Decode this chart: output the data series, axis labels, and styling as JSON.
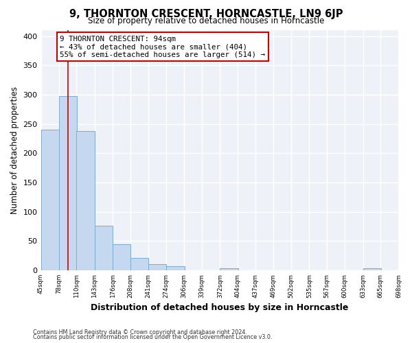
{
  "title": "9, THORNTON CRESCENT, HORNCASTLE, LN9 6JP",
  "subtitle": "Size of property relative to detached houses in Horncastle",
  "xlabel": "Distribution of detached houses by size in Horncastle",
  "ylabel": "Number of detached properties",
  "bar_left_edges": [
    45,
    78,
    110,
    143,
    176,
    208,
    241,
    274,
    306,
    339,
    372,
    404,
    437,
    469,
    502,
    535,
    567,
    600,
    633,
    665
  ],
  "bar_heights": [
    240,
    298,
    238,
    76,
    44,
    21,
    10,
    7,
    0,
    0,
    3,
    0,
    0,
    0,
    0,
    0,
    0,
    0,
    3,
    0
  ],
  "bin_width": 33,
  "tick_labels": [
    "45sqm",
    "78sqm",
    "110sqm",
    "143sqm",
    "176sqm",
    "208sqm",
    "241sqm",
    "274sqm",
    "306sqm",
    "339sqm",
    "372sqm",
    "404sqm",
    "437sqm",
    "469sqm",
    "502sqm",
    "535sqm",
    "567sqm",
    "600sqm",
    "633sqm",
    "665sqm",
    "698sqm"
  ],
  "bar_color": "#c5d8ef",
  "bar_edge_color": "#7aadd4",
  "vline_x": 94,
  "vline_color": "#cc0000",
  "annotation_title": "9 THORNTON CRESCENT: 94sqm",
  "annotation_line1": "← 43% of detached houses are smaller (404)",
  "annotation_line2": "55% of semi-detached houses are larger (514) →",
  "annotation_box_color": "#cc0000",
  "ylim": [
    0,
    410
  ],
  "yticks": [
    0,
    50,
    100,
    150,
    200,
    250,
    300,
    350,
    400
  ],
  "bg_color": "#eef2f8",
  "footer1": "Contains HM Land Registry data © Crown copyright and database right 2024.",
  "footer2": "Contains public sector information licensed under the Open Government Licence v3.0."
}
